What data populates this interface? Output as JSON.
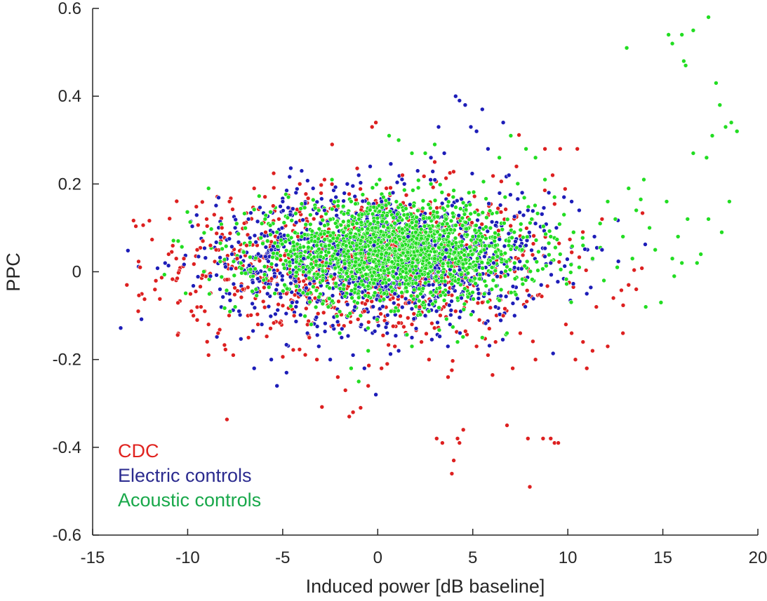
{
  "chart_data": {
    "type": "scatter",
    "title": "",
    "xlabel": "Induced power [dB baseline]",
    "ylabel": "PPC",
    "xlim": [
      -15,
      20
    ],
    "ylim": [
      -0.6,
      0.6
    ],
    "xticks": [
      -15,
      -10,
      -5,
      0,
      5,
      10,
      15,
      20
    ],
    "xtick_labels": [
      "-15",
      "-10",
      "-5",
      "0",
      "5",
      "10",
      "15",
      "20"
    ],
    "yticks": [
      -0.6,
      -0.4,
      -0.2,
      0,
      0.2,
      0.4,
      0.6
    ],
    "ytick_labels": [
      "-0.6",
      "-0.4",
      "-0.2",
      "0",
      "0.2",
      "0.4",
      "0.6"
    ],
    "grid": false,
    "legend_position": "bottom-left",
    "series": [
      {
        "name": "CDC",
        "color": "#dd2020",
        "points": [
          [
            -13.2,
            -0.03
          ],
          [
            -12.5,
            0.01
          ],
          [
            -12.6,
            -0.09
          ],
          [
            -11,
            0.04
          ],
          [
            -10.6,
            0.03
          ],
          [
            -10.2,
            0.03
          ],
          [
            -9.8,
            -0.09
          ],
          [
            -9.7,
            -0.1
          ],
          [
            -9.5,
            -0.11
          ],
          [
            -9.3,
            -0.08
          ],
          [
            -9.1,
            -0.09
          ],
          [
            -8.9,
            -0.12
          ],
          [
            -9.5,
            0.05
          ],
          [
            -9.2,
            0.07
          ],
          [
            -8.8,
            0.06
          ],
          [
            -8.5,
            0.05
          ],
          [
            -9,
            0.12
          ],
          [
            -8.6,
            0.13
          ],
          [
            -8.2,
            0.1
          ],
          [
            -7.8,
            0.16
          ],
          [
            -8.9,
            -0.19
          ],
          [
            -8.4,
            -0.14
          ],
          [
            -7.6,
            -0.19
          ],
          [
            -6.5,
            0.19
          ],
          [
            -6.8,
            -0.15
          ],
          [
            -6.3,
            -0.12
          ],
          [
            -5.5,
            0.15
          ],
          [
            -5.2,
            0.12
          ],
          [
            -4.8,
            -0.05
          ],
          [
            -4.4,
            -0.1
          ],
          [
            -4.1,
            0.2
          ],
          [
            -3.6,
            -0.15
          ],
          [
            -3.2,
            -0.2
          ],
          [
            -2.8,
            0.21
          ],
          [
            -2.4,
            0.29
          ],
          [
            -2.1,
            -0.24
          ],
          [
            -1.7,
            -0.27
          ],
          [
            -1.5,
            -0.33
          ],
          [
            -1.3,
            -0.32
          ],
          [
            -0.9,
            -0.31
          ],
          [
            -0.5,
            -0.26
          ],
          [
            -0.3,
            0.33
          ],
          [
            -0.1,
            0.34
          ],
          [
            0.2,
            -0.22
          ],
          [
            0.5,
            -0.21
          ],
          [
            0.9,
            -0.17
          ],
          [
            1.3,
            0.22
          ],
          [
            1.8,
            -0.12
          ],
          [
            2.3,
            -0.16
          ],
          [
            2.7,
            -0.2
          ],
          [
            3,
            0.25
          ],
          [
            3.1,
            -0.38
          ],
          [
            3.4,
            -0.39
          ],
          [
            3.7,
            -0.24
          ],
          [
            3.9,
            -0.46
          ],
          [
            4.0,
            -0.43
          ],
          [
            4.2,
            -0.38
          ],
          [
            4.3,
            -0.39
          ],
          [
            4.5,
            -0.36
          ],
          [
            5.2,
            -0.17
          ],
          [
            5.8,
            -0.19
          ],
          [
            6.2,
            -0.16
          ],
          [
            6.8,
            -0.35
          ],
          [
            7.1,
            -0.22
          ],
          [
            7.5,
            -0.14
          ],
          [
            7.9,
            -0.38
          ],
          [
            8,
            -0.49
          ],
          [
            8.3,
            -0.2
          ],
          [
            8.7,
            -0.38
          ],
          [
            9.1,
            -0.38
          ],
          [
            9.3,
            -0.39
          ],
          [
            9.5,
            -0.39
          ],
          [
            9.6,
            0.28
          ],
          [
            9.9,
            -0.12
          ],
          [
            10.2,
            -0.14
          ],
          [
            10.4,
            -0.2
          ],
          [
            10.5,
            0.28
          ],
          [
            10.8,
            -0.16
          ],
          [
            11,
            -0.22
          ],
          [
            11.3,
            -0.18
          ],
          [
            11.5,
            -0.08
          ],
          [
            11.8,
            0.12
          ],
          [
            12.1,
            -0.17
          ],
          [
            12.4,
            -0.06
          ],
          [
            12.9,
            -0.14
          ],
          [
            13.2,
            -0.03
          ],
          [
            13.6,
            -0.04
          ],
          [
            8.8,
            0.28
          ],
          [
            9.2,
            0.22
          ],
          [
            7.3,
            0.24
          ],
          [
            6.6,
            -0.1
          ],
          [
            5.5,
            -0.07
          ],
          [
            4.1,
            -0.09
          ],
          [
            2.2,
            -0.08
          ],
          [
            0.8,
            -0.06
          ],
          [
            -0.7,
            -0.09
          ],
          [
            -2.6,
            -0.08
          ],
          [
            -4.2,
            0.08
          ],
          [
            -5.9,
            0.09
          ],
          [
            -6.9,
            0.06
          ],
          [
            -7.4,
            0.03
          ],
          [
            -7.1,
            -0.04
          ]
        ]
      },
      {
        "name": "Electric controls",
        "color": "#1d1db8",
        "points": [
          [
            -8.8,
            -0.01
          ],
          [
            -8.3,
            -0.04
          ],
          [
            -7.8,
            -0.05
          ],
          [
            -7.5,
            0.1
          ],
          [
            -7.3,
            -0.09
          ],
          [
            -6.8,
            0.12
          ],
          [
            -6.5,
            -0.22
          ],
          [
            -6.1,
            -0.12
          ],
          [
            -5.8,
            -0.05
          ],
          [
            -5.6,
            -0.2
          ],
          [
            -5.3,
            -0.26
          ],
          [
            -5,
            0.16
          ],
          [
            -4.8,
            -0.23
          ],
          [
            -4.6,
            0.13
          ],
          [
            -4.3,
            0.18
          ],
          [
            -4,
            0.23
          ],
          [
            -3.7,
            -0.14
          ],
          [
            -3.4,
            0.19
          ],
          [
            -3.1,
            -0.17
          ],
          [
            -2.8,
            0.14
          ],
          [
            -2.5,
            -0.2
          ],
          [
            -2.2,
            0.17
          ],
          [
            -1.9,
            -0.15
          ],
          [
            -1.6,
            0.2
          ],
          [
            -1.3,
            -0.19
          ],
          [
            -1,
            0.22
          ],
          [
            -0.7,
            -0.22
          ],
          [
            -0.4,
            0.24
          ],
          [
            -0.1,
            -0.28
          ],
          [
            0.2,
            0.16
          ],
          [
            0.5,
            -0.14
          ],
          [
            0.8,
            0.18
          ],
          [
            1.1,
            -0.18
          ],
          [
            1.4,
            0.2
          ],
          [
            1.8,
            -0.15
          ],
          [
            2.1,
            0.23
          ],
          [
            2.5,
            -0.1
          ],
          [
            2.8,
            0.26
          ],
          [
            3.2,
            0.33
          ],
          [
            3.5,
            0.27
          ],
          [
            3.8,
            -0.12
          ],
          [
            4.1,
            0.4
          ],
          [
            4.3,
            0.39
          ],
          [
            4.6,
            0.38
          ],
          [
            4.9,
            0.33
          ],
          [
            5.2,
            0.32
          ],
          [
            5.5,
            0.37
          ],
          [
            5.8,
            0.28
          ],
          [
            6.2,
            -0.08
          ],
          [
            6.6,
            0.34
          ],
          [
            6.9,
            0.22
          ],
          [
            7.2,
            -0.1
          ],
          [
            7.6,
            0.18
          ],
          [
            7.9,
            0.14
          ],
          [
            8.3,
            0.11
          ],
          [
            8.6,
            -0.03
          ],
          [
            9,
            0.18
          ],
          [
            9.4,
            0.1
          ],
          [
            9.8,
            0.17
          ],
          [
            10.2,
            0.16
          ],
          [
            10.6,
            0.14
          ],
          [
            11,
            -0.05
          ],
          [
            11.4,
            0.08
          ],
          [
            11.8,
            0.05
          ],
          [
            3.6,
            0.05
          ],
          [
            1.6,
            0.08
          ],
          [
            -0.2,
            0.06
          ],
          [
            -2.1,
            0.04
          ],
          [
            -3.9,
            0.03
          ],
          [
            -5.6,
            0.05
          ],
          [
            0.9,
            -0.05
          ],
          [
            2.7,
            -0.03
          ],
          [
            4.4,
            -0.06
          ],
          [
            6.1,
            0.02
          ],
          [
            7.8,
            0.06
          ],
          [
            9.1,
            0.02
          ],
          [
            -1.2,
            -0.08
          ],
          [
            -4.5,
            -0.07
          ]
        ]
      },
      {
        "name": "Acoustic controls",
        "color": "#22dd22",
        "points": [
          [
            -10.5,
            0.07
          ],
          [
            -8.9,
            0.19
          ],
          [
            -7.2,
            0.02
          ],
          [
            -6.4,
            -0.04
          ],
          [
            -5.8,
            0.07
          ],
          [
            -5.3,
            0.03
          ],
          [
            -4.9,
            -0.03
          ],
          [
            -4.4,
            0.05
          ],
          [
            -4,
            0.08
          ],
          [
            -3.6,
            0
          ],
          [
            -3.2,
            0.06
          ],
          [
            -2.9,
            -0.02
          ],
          [
            -2.5,
            0.07
          ],
          [
            -2.2,
            0.03
          ],
          [
            -1.8,
            0.09
          ],
          [
            -1.5,
            0.02
          ],
          [
            -1.1,
            0.06
          ],
          [
            -0.8,
            -0.01
          ],
          [
            -0.4,
            0.05
          ],
          [
            -0.1,
            0.1
          ],
          [
            0.2,
            0.04
          ],
          [
            0.6,
            0.08
          ],
          [
            0.9,
            0.01
          ],
          [
            1.3,
            0.06
          ],
          [
            1.6,
            0.03
          ],
          [
            2,
            0.09
          ],
          [
            2.3,
            0.05
          ],
          [
            2.7,
            0.02
          ],
          [
            3,
            0.07
          ],
          [
            3.4,
            0.04
          ],
          [
            3.7,
            0.08
          ],
          [
            4.1,
            0.03
          ],
          [
            4.4,
            0.06
          ],
          [
            4.8,
            0.01
          ],
          [
            5.1,
            0.05
          ],
          [
            5.5,
            0.08
          ],
          [
            5.8,
            0.02
          ],
          [
            6.2,
            0.06
          ],
          [
            6.5,
            0.04
          ],
          [
            6.9,
            0.07
          ],
          [
            7.2,
            0.02
          ],
          [
            7.6,
            0.05
          ],
          [
            -3.1,
            0.14
          ],
          [
            -1.4,
            0.16
          ],
          [
            0.3,
            0.17
          ],
          [
            1.9,
            0.15
          ],
          [
            3.6,
            0.12
          ],
          [
            5.3,
            0.13
          ],
          [
            -2.6,
            -0.08
          ],
          [
            -0.9,
            -0.1
          ],
          [
            0.7,
            -0.09
          ],
          [
            2.4,
            -0.07
          ],
          [
            4.2,
            -0.06
          ],
          [
            6,
            -0.04
          ],
          [
            -1.4,
            -0.22
          ],
          [
            -1,
            -0.25
          ],
          [
            0.6,
            0.31
          ],
          [
            1.1,
            0.3
          ],
          [
            1.8,
            0.27
          ],
          [
            2.5,
            0.27
          ],
          [
            3,
            0.29
          ],
          [
            6.4,
            0.26
          ],
          [
            7,
            0.31
          ],
          [
            7.8,
            0.28
          ],
          [
            8.3,
            0.26
          ],
          [
            8.8,
            0.21
          ],
          [
            9.3,
            0.17
          ],
          [
            9.8,
            0.13
          ],
          [
            10.3,
            0.09
          ],
          [
            10.8,
            0.06
          ],
          [
            11.3,
            0.03
          ],
          [
            11.7,
            0.11
          ],
          [
            12.1,
            0.16
          ],
          [
            12.5,
            0.12
          ],
          [
            12.9,
            0.08
          ],
          [
            13.2,
            0.19
          ],
          [
            13.6,
            0.14
          ],
          [
            14,
            0.21
          ],
          [
            14.3,
            0.1
          ],
          [
            14.6,
            0.05
          ],
          [
            14.9,
            -0.07
          ],
          [
            15.2,
            0.16
          ],
          [
            15.5,
            0.03
          ],
          [
            15.8,
            0.08
          ],
          [
            16,
            0.02
          ],
          [
            16.3,
            0.12
          ],
          [
            16.6,
            0.27
          ],
          [
            17,
            0.04
          ],
          [
            17.3,
            0.26
          ],
          [
            17.6,
            0.31
          ],
          [
            18,
            0.38
          ],
          [
            18.3,
            0.33
          ],
          [
            18.6,
            0.34
          ],
          [
            18.9,
            0.32
          ],
          [
            17.8,
            0.43
          ],
          [
            16.1,
            0.48
          ],
          [
            16.2,
            0.47
          ],
          [
            16,
            0.54
          ],
          [
            15.3,
            0.54
          ],
          [
            15.5,
            0.52
          ],
          [
            16.6,
            0.55
          ],
          [
            17.4,
            0.58
          ],
          [
            13.1,
            0.51
          ],
          [
            18.5,
            0.16
          ],
          [
            18.1,
            0.09
          ],
          [
            17.4,
            0.12
          ],
          [
            16.8,
            0.02
          ],
          [
            15.6,
            -0.01
          ],
          [
            14.1,
            -0.08
          ],
          [
            13.4,
            0.03
          ],
          [
            12.6,
            0.01
          ],
          [
            11.9,
            -0.02
          ],
          [
            10.6,
            0.01
          ],
          [
            9.6,
            0.04
          ],
          [
            6.8,
            -0.14
          ],
          [
            5.5,
            -0.15
          ],
          [
            4.2,
            -0.16
          ],
          [
            1.8,
            -0.17
          ],
          [
            -0.5,
            -0.18
          ],
          [
            -3.5,
            -0.12
          ],
          [
            -6.1,
            0.11
          ],
          [
            -7.5,
            -0.08
          ],
          [
            -4.7,
            0.17
          ],
          [
            -2,
            -0.14
          ],
          [
            0.1,
            0.21
          ],
          [
            2.8,
            0.2
          ],
          [
            4.8,
            0.18
          ],
          [
            6.7,
            0.17
          ],
          [
            8.1,
            0.12
          ],
          [
            9.1,
            0.08
          ]
        ]
      }
    ]
  }
}
